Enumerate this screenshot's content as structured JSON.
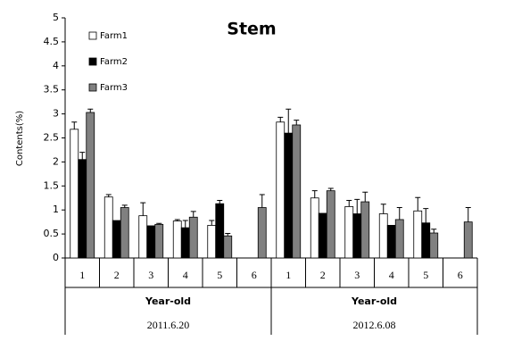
{
  "chart_data": {
    "type": "bar",
    "title": "Stem",
    "y_label": "Contents(%)",
    "categories": [
      "1",
      "2",
      "3",
      "4",
      "5",
      "6",
      "1",
      "2",
      "3",
      "4",
      "5",
      "6"
    ],
    "groups": [
      {
        "label": "Year-old",
        "date": "2011.6.20"
      },
      {
        "label": "Year-old",
        "date": "2012.6.08"
      }
    ],
    "series": [
      {
        "name": "Farm1",
        "color": "#ffffff",
        "values": [
          2.68,
          1.27,
          0.88,
          0.77,
          0.68,
          null,
          2.83,
          1.25,
          1.07,
          0.92,
          0.98,
          null
        ],
        "errors": [
          0.15,
          0.05,
          0.27,
          0.03,
          0.1,
          null,
          0.1,
          0.15,
          0.13,
          0.2,
          0.28,
          null
        ]
      },
      {
        "name": "Farm2",
        "color": "#000000",
        "values": [
          2.05,
          0.78,
          0.67,
          0.63,
          1.13,
          null,
          2.6,
          0.93,
          0.92,
          0.68,
          0.73,
          null
        ],
        "errors": [
          0.15,
          null,
          null,
          0.15,
          0.07,
          null,
          0.5,
          null,
          0.3,
          null,
          0.3,
          null
        ]
      },
      {
        "name": "Farm3",
        "color": "#808080",
        "values": [
          3.03,
          1.05,
          0.7,
          0.85,
          0.46,
          1.05,
          2.77,
          1.4,
          1.17,
          0.8,
          0.52,
          0.75
        ],
        "errors": [
          0.07,
          0.05,
          0.02,
          0.12,
          0.05,
          0.27,
          0.1,
          0.05,
          0.2,
          0.25,
          0.08,
          0.3
        ]
      }
    ],
    "ylim": [
      0,
      5
    ],
    "yticks": [
      0,
      0.5,
      1,
      1.5,
      2,
      2.5,
      3,
      3.5,
      4,
      4.5,
      5
    ]
  }
}
